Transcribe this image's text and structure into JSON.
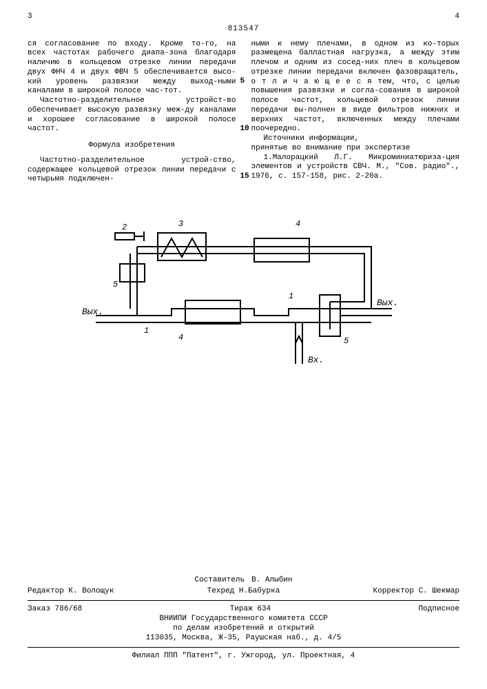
{
  "header": {
    "left_page": "3",
    "right_page": "4",
    "patent_number": "813547"
  },
  "left_col": {
    "p1": "ся согласование по входу. Кроме то-го, на всех частотах рабочего диапа-зона благодаря наличию в кольцевом отрезке линии передачи двух ФНЧ 4 и двух ФВЧ 5 обеспечивается высо-кий уровень развязки между выход-ными каналами в широкой полосе час-тот.",
    "p2": "Частотно-разделительное устройст-во обеспечивает высокую развязку меж-ду каналами и хорошее согласование в широкой полосе частот.",
    "formula_title": "Формула изобретения",
    "p3": "Частотно-разделительное устрой-ство, содержащее кольцевой отрезок линии передачи с четырьмя подключен-"
  },
  "right_col": {
    "p1": "ными к нему плечами, в одном из ко-торых размещена балластная нагрузка, а между этим плечом и одним из сосед-них плеч в кольцевом отрезке линии передачи включен фазовращатель, о т л и ч а ю щ е е с я  тем, что, с целью повышения развязки и согла-сования в широкой полосе частот, кольцевой отрезок линии передачи вы-полнен в виде фильтров нижних и верхних частот, включенных между плечами поочередно.",
    "sources_title": "Источники информации,",
    "sources_sub": "принятые во внимание при экспертизе",
    "ref": "1.Малорацкий Л.Г. Микроминиатюриза-ция элементов и устройств СВЧ. М., \"Сов. радио\"., 1976, с. 157-158, рис. 2-20а.",
    "line_nums": {
      "a": "5",
      "b": "10",
      "c": "15"
    }
  },
  "diagram": {
    "labels": {
      "n1": "1",
      "n2": "2",
      "n3": "3",
      "n4": "4",
      "n5": "5",
      "out": "Вых.",
      "in": "Вх."
    },
    "stroke": "#000000",
    "stroke_width": 2,
    "bg": "#ffffff"
  },
  "credits": {
    "compiler_label": "Составитель",
    "compiler": "В. Алыбин",
    "editor_label": "Редактор",
    "editor": "К. Волощук",
    "techred_label": "Техред",
    "techred": "Н.Бабурка",
    "corrector_label": "Корректор",
    "corrector": "С. Шекмар",
    "order_label": "Заказ",
    "order": "786/68",
    "tirage_label": "Тираж",
    "tirage": "634",
    "subscription": "Подписное",
    "org1": "ВНИИПИ Государственного комитета СССР",
    "org2": "по делам изобретений и открытий",
    "addr1": "113035, Москва, Ж-35, Раушская наб., д. 4/5",
    "org3": "Филиал ППП \"Патент\", г. Ужгород, ул. Проектная, 4"
  }
}
